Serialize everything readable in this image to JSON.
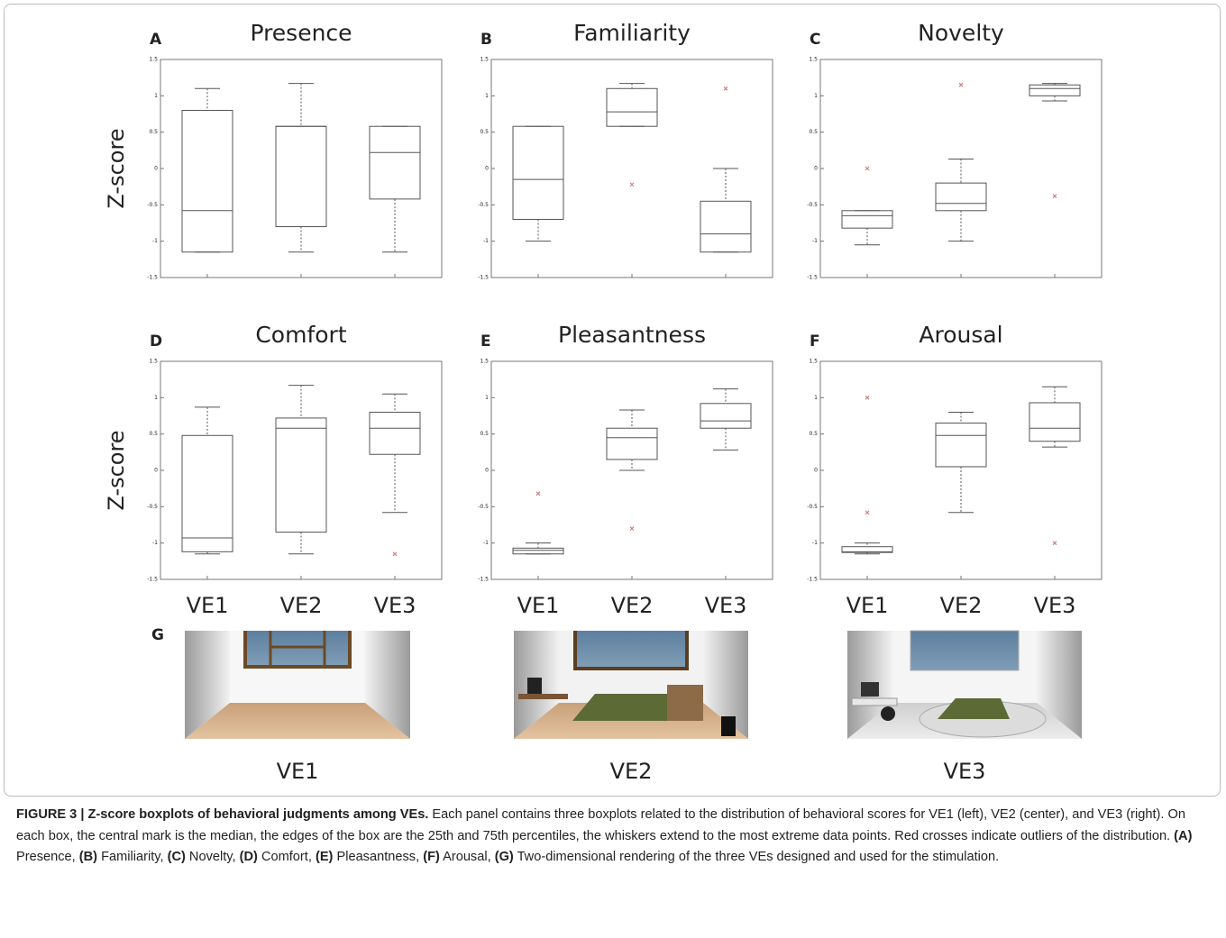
{
  "chart_data": [
    {
      "type": "box",
      "panel": "A",
      "title": "Presence",
      "ylabel": "Z-score",
      "categories": [
        null,
        null,
        null
      ],
      "ylim": [
        -1.5,
        1.5
      ],
      "yticks": [
        -1.5,
        -1,
        -0.5,
        0,
        0.5,
        1,
        1.5
      ],
      "color": "#555555",
      "outlier_color": "#d08080",
      "boxes": [
        {
          "whisker_high": 1.1,
          "q3": 0.8,
          "median": -0.58,
          "q1": -1.15,
          "whisker_low": -1.15,
          "outliers": []
        },
        {
          "whisker_high": 1.17,
          "q3": 0.58,
          "median": 0.58,
          "q1": -0.8,
          "whisker_low": -1.15,
          "outliers": []
        },
        {
          "whisker_high": 0.58,
          "q3": 0.58,
          "median": 0.22,
          "q1": -0.42,
          "whisker_low": -1.15,
          "outliers": []
        }
      ]
    },
    {
      "type": "box",
      "panel": "B",
      "title": "Familiarity",
      "categories": [
        null,
        null,
        null
      ],
      "ylim": [
        -1.5,
        1.5
      ],
      "yticks": [
        -1.5,
        -1,
        -0.5,
        0,
        0.5,
        1,
        1.5
      ],
      "color": "#555555",
      "outlier_color": "#d08080",
      "boxes": [
        {
          "whisker_high": 0.58,
          "q3": 0.58,
          "median": -0.15,
          "q1": -0.7,
          "whisker_low": -1.0,
          "outliers": []
        },
        {
          "whisker_high": 1.17,
          "q3": 1.1,
          "median": 0.78,
          "q1": 0.58,
          "whisker_low": 0.58,
          "outliers": [
            -0.22
          ]
        },
        {
          "whisker_high": 0.0,
          "q3": -0.45,
          "median": -0.9,
          "q1": -1.15,
          "whisker_low": -1.15,
          "outliers": [
            1.1
          ]
        }
      ]
    },
    {
      "type": "box",
      "panel": "C",
      "title": "Novelty",
      "categories": [
        null,
        null,
        null
      ],
      "ylim": [
        -1.5,
        1.5
      ],
      "yticks": [
        -1.5,
        -1,
        -0.5,
        0,
        0.5,
        1,
        1.5
      ],
      "color": "#555555",
      "outlier_color": "#d08080",
      "boxes": [
        {
          "whisker_high": -0.58,
          "q3": -0.58,
          "median": -0.65,
          "q1": -0.82,
          "whisker_low": -1.05,
          "outliers": [
            0.0
          ]
        },
        {
          "whisker_high": 0.13,
          "q3": -0.2,
          "median": -0.48,
          "q1": -0.58,
          "whisker_low": -1.0,
          "outliers": [
            1.15
          ]
        },
        {
          "whisker_high": 1.17,
          "q3": 1.15,
          "median": 1.1,
          "q1": 1.0,
          "whisker_low": 0.93,
          "outliers": [
            -0.38
          ]
        }
      ]
    },
    {
      "type": "box",
      "panel": "D",
      "title": "Comfort",
      "ylabel": "Z-score",
      "categories": [
        "VE1",
        "VE2",
        "VE3"
      ],
      "ylim": [
        -1.5,
        1.5
      ],
      "yticks": [
        -1.5,
        -1,
        -0.5,
        0,
        0.5,
        1,
        1.5
      ],
      "color": "#555555",
      "outlier_color": "#d08080",
      "boxes": [
        {
          "whisker_high": 0.87,
          "q3": 0.48,
          "median": -0.93,
          "q1": -1.12,
          "whisker_low": -1.15,
          "outliers": []
        },
        {
          "whisker_high": 1.17,
          "q3": 0.72,
          "median": 0.58,
          "q1": -0.85,
          "whisker_low": -1.15,
          "outliers": []
        },
        {
          "whisker_high": 1.05,
          "q3": 0.8,
          "median": 0.58,
          "q1": 0.22,
          "whisker_low": -0.58,
          "outliers": [
            -1.15
          ]
        }
      ]
    },
    {
      "type": "box",
      "panel": "E",
      "title": "Pleasantness",
      "categories": [
        "VE1",
        "VE2",
        "VE3"
      ],
      "ylim": [
        -1.5,
        1.5
      ],
      "yticks": [
        -1.5,
        -1,
        -0.5,
        0,
        0.5,
        1,
        1.5
      ],
      "color": "#555555",
      "outlier_color": "#d08080",
      "boxes": [
        {
          "whisker_high": -1.0,
          "q3": -1.07,
          "median": -1.1,
          "q1": -1.15,
          "whisker_low": -1.15,
          "outliers": [
            -0.32
          ]
        },
        {
          "whisker_high": 0.83,
          "q3": 0.58,
          "median": 0.45,
          "q1": 0.15,
          "whisker_low": 0.0,
          "outliers": [
            -0.8
          ]
        },
        {
          "whisker_high": 1.12,
          "q3": 0.92,
          "median": 0.68,
          "q1": 0.58,
          "whisker_low": 0.28,
          "outliers": []
        }
      ]
    },
    {
      "type": "box",
      "panel": "F",
      "title": "Arousal",
      "categories": [
        "VE1",
        "VE2",
        "VE3"
      ],
      "ylim": [
        -1.5,
        1.5
      ],
      "yticks": [
        -1.5,
        -1,
        -0.5,
        0,
        0.5,
        1,
        1.5
      ],
      "color": "#555555",
      "outlier_color": "#d08080",
      "boxes": [
        {
          "whisker_high": -1.0,
          "q3": -1.05,
          "median": -1.12,
          "q1": -1.13,
          "whisker_low": -1.15,
          "outliers": [
            1.0,
            -0.58
          ]
        },
        {
          "whisker_high": 0.8,
          "q3": 0.65,
          "median": 0.48,
          "q1": 0.05,
          "whisker_low": -0.58,
          "outliers": []
        },
        {
          "whisker_high": 1.15,
          "q3": 0.93,
          "median": 0.58,
          "q1": 0.4,
          "whisker_low": 0.32,
          "outliers": [
            -1.0
          ]
        }
      ]
    }
  ],
  "panel_g": {
    "label": "G",
    "images": [
      {
        "caption": "VE1"
      },
      {
        "caption": "VE2"
      },
      {
        "caption": "VE3"
      }
    ]
  },
  "caption": [
    {
      "text": "FIGURE 3 | Z-score boxplots of behavioral judgments among VEs.",
      "bold": true
    },
    {
      "text": " Each panel contains three boxplots related to the distribution of behavioral scores for VE1 (left), VE2 (center), and VE3 (right). On each box, the central mark is the median, the edges of the box are the 25th and 75th percentiles, the whiskers extend to the most extreme data points. Red crosses indicate outliers of the distribution. ",
      "bold": false
    },
    {
      "text": "(A)",
      "bold": true
    },
    {
      "text": " Presence, ",
      "bold": false
    },
    {
      "text": "(B)",
      "bold": true
    },
    {
      "text": " Familiarity, ",
      "bold": false
    },
    {
      "text": "(C)",
      "bold": true
    },
    {
      "text": " Novelty, ",
      "bold": false
    },
    {
      "text": "(D)",
      "bold": true
    },
    {
      "text": " Comfort, ",
      "bold": false
    },
    {
      "text": "(E)",
      "bold": true
    },
    {
      "text": " Pleasantness, ",
      "bold": false
    },
    {
      "text": "(F)",
      "bold": true
    },
    {
      "text": " Arousal, ",
      "bold": false
    },
    {
      "text": "(G)",
      "bold": true
    },
    {
      "text": " Two-dimensional rendering of the three VEs designed and used for the stimulation.",
      "bold": false
    }
  ]
}
